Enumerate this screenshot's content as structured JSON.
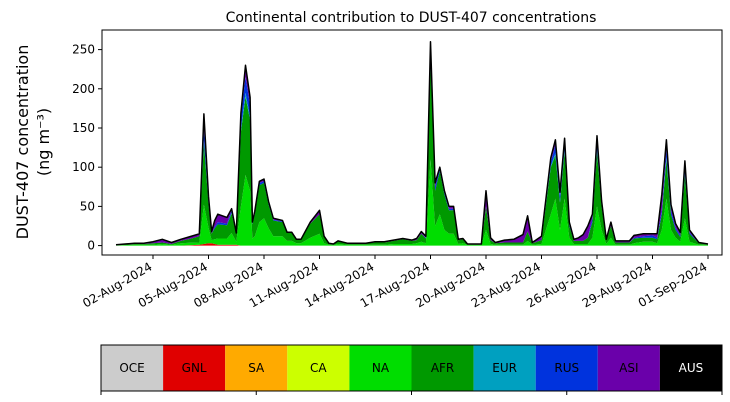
{
  "chart_data": {
    "type": "area",
    "stacked": true,
    "title": "Continental contribution to DUST-407 concentrations",
    "ylabel_line1": "DUST-407 concentration",
    "ylabel_line2": "(ng m⁻³)",
    "ylim": [
      -12,
      275
    ],
    "y_ticks": [
      0,
      50,
      100,
      150,
      200,
      250
    ],
    "x_start": "2024-07-31",
    "x_end": "2024-09-01",
    "x_ticks": [
      "02-Aug-2024",
      "05-Aug-2024",
      "08-Aug-2024",
      "11-Aug-2024",
      "14-Aug-2024",
      "17-Aug-2024",
      "20-Aug-2024",
      "23-Aug-2024",
      "26-Aug-2024",
      "29-Aug-2024",
      "01-Sep-2024"
    ],
    "total_line_color": "#000000",
    "x": [
      "2024-07-31",
      "2024-08-01",
      "2024-08-01T12",
      "2024-08-02",
      "2024-08-02T12",
      "2024-08-03",
      "2024-08-03T12",
      "2024-08-04",
      "2024-08-04T12",
      "2024-08-04T18",
      "2024-08-05",
      "2024-08-05T04",
      "2024-08-05T08",
      "2024-08-05T12",
      "2024-08-06",
      "2024-08-06T06",
      "2024-08-06T12",
      "2024-08-06T18",
      "2024-08-07",
      "2024-08-07T06",
      "2024-08-07T09",
      "2024-08-07T12",
      "2024-08-07T18",
      "2024-08-08",
      "2024-08-08T06",
      "2024-08-08T12",
      "2024-08-09",
      "2024-08-09T06",
      "2024-08-09T12",
      "2024-08-09T18",
      "2024-08-10",
      "2024-08-10T12",
      "2024-08-11",
      "2024-08-11T06",
      "2024-08-11T12",
      "2024-08-11T18",
      "2024-08-12",
      "2024-08-12T12",
      "2024-08-13",
      "2024-08-13T12",
      "2024-08-14",
      "2024-08-14T12",
      "2024-08-15",
      "2024-08-15T12",
      "2024-08-16",
      "2024-08-16T06",
      "2024-08-16T12",
      "2024-08-16T18",
      "2024-08-17",
      "2024-08-17T06",
      "2024-08-17T12",
      "2024-08-17T18",
      "2024-08-18",
      "2024-08-18T06",
      "2024-08-18T12",
      "2024-08-18T18",
      "2024-08-19",
      "2024-08-19T06",
      "2024-08-19T12",
      "2024-08-19T18",
      "2024-08-20",
      "2024-08-20T06",
      "2024-08-20T12",
      "2024-08-21",
      "2024-08-21T12",
      "2024-08-22",
      "2024-08-22T06",
      "2024-08-22T12",
      "2024-08-23",
      "2024-08-23T12",
      "2024-08-23T18",
      "2024-08-24",
      "2024-08-24T06",
      "2024-08-24T12",
      "2024-08-24T18",
      "2024-08-25",
      "2024-08-25T06",
      "2024-08-25T12",
      "2024-08-25T18",
      "2024-08-26",
      "2024-08-26T06",
      "2024-08-26T12",
      "2024-08-26T18",
      "2024-08-27",
      "2024-08-27T06",
      "2024-08-27T12",
      "2024-08-27T18",
      "2024-08-28",
      "2024-08-28T12",
      "2024-08-29",
      "2024-08-29T06",
      "2024-08-29T12",
      "2024-08-29T18",
      "2024-08-30",
      "2024-08-30T06",
      "2024-08-30T12",
      "2024-08-30T18",
      "2024-08-31",
      "2024-08-31T12",
      "2024-09-01"
    ],
    "series": [
      {
        "name": "OCE",
        "color": "#cccccc",
        "values": [
          0,
          0,
          0,
          0,
          0,
          0,
          0,
          0,
          0,
          0,
          0,
          0,
          0,
          0,
          0,
          0,
          0,
          0,
          0,
          0,
          0,
          0,
          0,
          0,
          0,
          0,
          0,
          0,
          0,
          0,
          0,
          0,
          0,
          0,
          0,
          0,
          0,
          0,
          0,
          0,
          0,
          0,
          0,
          0,
          0,
          0,
          0,
          0,
          0,
          0,
          0,
          0,
          0,
          0,
          0,
          0,
          0,
          0,
          0,
          0,
          0,
          0,
          0,
          0,
          0,
          0,
          0,
          0,
          0,
          0,
          0,
          0,
          0,
          0,
          0,
          0,
          0,
          0,
          0,
          0,
          0,
          0,
          0,
          0,
          0,
          0,
          0,
          0,
          0,
          0,
          0,
          0,
          0,
          0,
          0,
          0,
          0,
          0,
          0,
          0
        ]
      },
      {
        "name": "GNL",
        "color": "#e00000",
        "values": [
          0,
          0,
          0,
          0,
          0,
          0,
          0,
          0.5,
          1,
          2,
          3,
          3,
          2,
          1,
          1,
          1,
          1,
          0,
          0,
          0,
          0,
          0,
          0,
          0,
          0,
          0,
          0,
          0,
          0,
          0,
          0,
          0,
          0,
          0,
          0,
          0,
          0,
          0,
          0,
          0,
          0,
          0,
          0,
          0,
          0,
          0,
          0,
          0,
          0,
          0,
          0,
          0,
          0,
          0,
          0,
          0,
          0,
          0,
          0,
          0,
          0,
          0,
          0,
          0,
          0,
          0,
          0,
          0,
          0,
          0,
          0,
          0,
          0,
          0,
          0,
          0,
          0,
          0,
          0,
          0,
          0,
          0,
          0,
          0,
          0,
          0,
          0,
          0,
          0,
          0,
          0,
          0,
          0,
          0,
          0,
          0,
          0,
          0,
          0,
          0
        ]
      },
      {
        "name": "SA",
        "color": "#ffaa00",
        "values": [
          0,
          0,
          0,
          0,
          0,
          0,
          0,
          0,
          0,
          0,
          0,
          0,
          0,
          0,
          0,
          0,
          0,
          0,
          0,
          0,
          0,
          0,
          0,
          0,
          0,
          0,
          0,
          0,
          0,
          0,
          0,
          0,
          0,
          0,
          0,
          0,
          0,
          0,
          0,
          0,
          0,
          0,
          0,
          0,
          0,
          0,
          0,
          0,
          0,
          0,
          0,
          0,
          0,
          0,
          0,
          0,
          0,
          0,
          0,
          0,
          0,
          0,
          0,
          0,
          0,
          0,
          0,
          0,
          0,
          0,
          0,
          0,
          0,
          0,
          0,
          0,
          0,
          0,
          0,
          0,
          0,
          0,
          0,
          0,
          0,
          0,
          0,
          0,
          0,
          0,
          0,
          0,
          0,
          0,
          0,
          0,
          0,
          0,
          0,
          0
        ]
      },
      {
        "name": "CA",
        "color": "#ccff00",
        "values": [
          0,
          0,
          0,
          0,
          0,
          0,
          0,
          0,
          0,
          0,
          0,
          0,
          0,
          0,
          0,
          0,
          0,
          0,
          0,
          0,
          0,
          0,
          0,
          0,
          0,
          0,
          0,
          0,
          0,
          0,
          0,
          0,
          0,
          0,
          0,
          0,
          0,
          0,
          0,
          0,
          0,
          0,
          0,
          0,
          0,
          0,
          0,
          0,
          0,
          0,
          0,
          0,
          0,
          0,
          0,
          0,
          0,
          0,
          0,
          0,
          0,
          0,
          0,
          0,
          0,
          0,
          0,
          0,
          0,
          0,
          0,
          0,
          0,
          0,
          0,
          0,
          0,
          0,
          0,
          0,
          0,
          0,
          0,
          0,
          0,
          0,
          0,
          0,
          0,
          0,
          0,
          0,
          0,
          0,
          0,
          0,
          0,
          0,
          0,
          0
        ]
      },
      {
        "name": "NA",
        "color": "#00dd00",
        "values": [
          0.5,
          1,
          1,
          1,
          2,
          1,
          3,
          3,
          3,
          50,
          20,
          4,
          6,
          8,
          8,
          15,
          4,
          50,
          90,
          70,
          9,
          12,
          30,
          35,
          22,
          12,
          12,
          6,
          6,
          3,
          3,
          10,
          15,
          3,
          1,
          1,
          2,
          1,
          1,
          1,
          1,
          1,
          2,
          2,
          2,
          3,
          5,
          3,
          110,
          25,
          40,
          20,
          15,
          15,
          2,
          3,
          1,
          1,
          1,
          1,
          20,
          2,
          1,
          1,
          1,
          1,
          6,
          1,
          2,
          40,
          60,
          20,
          60,
          10,
          2,
          2,
          2,
          2,
          10,
          50,
          20,
          2,
          10,
          1,
          1,
          1,
          1,
          3,
          5,
          5,
          3,
          20,
          60,
          20,
          10,
          5,
          35,
          5,
          1,
          1
        ]
      },
      {
        "name": "AFR",
        "color": "#009900",
        "values": [
          0.5,
          1,
          1,
          2,
          2,
          1,
          3,
          5,
          8,
          80,
          30,
          8,
          14,
          18,
          17,
          25,
          10,
          95,
          100,
          90,
          18,
          28,
          47,
          45,
          30,
          20,
          18,
          10,
          10,
          5,
          5,
          18,
          25,
          8,
          2,
          1,
          4,
          2,
          2,
          2,
          3,
          3,
          4,
          6,
          4,
          4,
          10,
          6,
          125,
          45,
          55,
          45,
          30,
          30,
          5,
          5,
          1,
          1,
          1,
          1,
          30,
          5,
          2,
          3,
          3,
          3,
          12,
          2,
          5,
          60,
          55,
          35,
          60,
          15,
          4,
          4,
          4,
          8,
          20,
          70,
          30,
          5,
          15,
          3,
          3,
          3,
          3,
          6,
          5,
          5,
          5,
          20,
          50,
          20,
          10,
          6,
          55,
          10,
          2,
          1
        ]
      },
      {
        "name": "EUR",
        "color": "#00a0c0",
        "values": [
          0,
          0,
          0,
          0,
          0,
          0,
          0,
          0,
          0,
          2,
          1,
          0,
          0,
          0,
          0,
          1,
          0,
          4,
          5,
          4,
          0,
          0,
          0,
          0,
          0,
          0,
          0,
          0,
          0,
          0,
          0,
          0,
          0,
          0,
          0,
          0,
          0,
          0,
          0,
          0,
          0,
          0,
          0,
          0,
          0,
          0,
          0,
          0,
          5,
          0,
          0,
          0,
          0,
          0,
          0,
          0,
          0,
          0,
          0,
          0,
          0,
          0,
          0,
          0,
          0,
          0,
          0,
          0,
          0,
          2,
          3,
          1,
          3,
          0,
          0,
          0,
          0,
          0,
          0,
          3,
          1,
          0,
          0,
          0,
          0,
          0,
          0,
          0,
          0,
          0,
          0,
          0,
          3,
          0,
          0,
          0,
          2,
          0,
          0,
          0
        ]
      },
      {
        "name": "RUS",
        "color": "#0033dd",
        "values": [
          0,
          0,
          0,
          0,
          0,
          0,
          0,
          0,
          0,
          15,
          5,
          0,
          2,
          3,
          2,
          3,
          0,
          15,
          20,
          15,
          2,
          2,
          3,
          2,
          2,
          1,
          1,
          0,
          0,
          0,
          0,
          0,
          0,
          0,
          0,
          0,
          0,
          0,
          0,
          0,
          0,
          0,
          0,
          0,
          0,
          0,
          0,
          1,
          13,
          5,
          4,
          3,
          2,
          2,
          0,
          0,
          0,
          0,
          0,
          0,
          0,
          0,
          0,
          0,
          0,
          0,
          0,
          0,
          0,
          5,
          10,
          8,
          10,
          3,
          0,
          0,
          0,
          0,
          5,
          10,
          3,
          0,
          0,
          0,
          0,
          0,
          0,
          1,
          2,
          3,
          2,
          5,
          10,
          5,
          3,
          2,
          8,
          2,
          0,
          0
        ]
      },
      {
        "name": "ASI",
        "color": "#6a00aa",
        "values": [
          0,
          1,
          1,
          2,
          4,
          2,
          2,
          3,
          3,
          19,
          4,
          3,
          8,
          10,
          8,
          2,
          1,
          5,
          15,
          10,
          1,
          2,
          2,
          3,
          2,
          2,
          1,
          1,
          1,
          0,
          0,
          2,
          5,
          1,
          0,
          0,
          0,
          0,
          0,
          0,
          1,
          1,
          1,
          1,
          1,
          2,
          3,
          2,
          7,
          5,
          1,
          2,
          3,
          3,
          1,
          1,
          0,
          0,
          0,
          0,
          20,
          3,
          1,
          3,
          4,
          10,
          20,
          1,
          5,
          5,
          7,
          4,
          4,
          2,
          2,
          4,
          8,
          15,
          5,
          7,
          3,
          1,
          5,
          2,
          2,
          2,
          2,
          3,
          3,
          2,
          5,
          20,
          12,
          7,
          5,
          4,
          8,
          3,
          1,
          0
        ]
      }
    ]
  },
  "legend_boxes": [
    {
      "label": "OCE",
      "color": "#cccccc",
      "text_color": "#000000"
    },
    {
      "label": "GNL",
      "color": "#e00000",
      "text_color": "#000000"
    },
    {
      "label": "SA",
      "color": "#ffaa00",
      "text_color": "#000000"
    },
    {
      "label": "CA",
      "color": "#ccff00",
      "text_color": "#000000"
    },
    {
      "label": "NA",
      "color": "#00dd00",
      "text_color": "#000000"
    },
    {
      "label": "AFR",
      "color": "#009900",
      "text_color": "#000000"
    },
    {
      "label": "EUR",
      "color": "#00a0c0",
      "text_color": "#000000"
    },
    {
      "label": "RUS",
      "color": "#0033dd",
      "text_color": "#000000"
    },
    {
      "label": "ASI",
      "color": "#6a00aa",
      "text_color": "#000000"
    },
    {
      "label": "AUS",
      "color": "#000000",
      "text_color": "#ffffff"
    }
  ]
}
